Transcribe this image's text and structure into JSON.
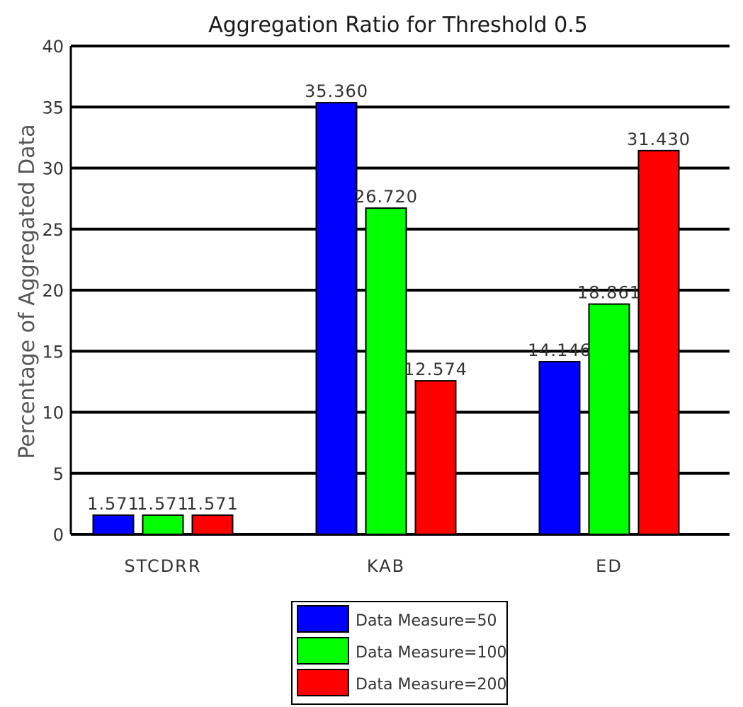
{
  "chart_data": {
    "type": "bar",
    "title": "Aggregation Ratio for Threshold 0.5",
    "xlabel": "",
    "ylabel": "Percentage of Aggregated Data",
    "ylim": [
      0,
      40
    ],
    "yticks": [
      "0",
      "5",
      "10",
      "15",
      "20",
      "25",
      "30",
      "35",
      "40"
    ],
    "grid": "horizontal",
    "legend_position": "bottom",
    "categories": [
      "STCDRR",
      "KAB",
      "ED"
    ],
    "series": [
      {
        "name": "Data Measure=50",
        "color": "#0000ff",
        "values": [
          1.571,
          35.36,
          14.146
        ],
        "labels": [
          "1.571",
          "35.360",
          "14.146"
        ]
      },
      {
        "name": "Data Measure=100",
        "color": "#00ff00",
        "values": [
          1.571,
          26.72,
          18.861
        ],
        "labels": [
          "1.571",
          "26.720",
          "18.861"
        ]
      },
      {
        "name": "Data Measure=200",
        "color": "#ff0000",
        "values": [
          1.571,
          12.574,
          31.43
        ],
        "labels": [
          "1.571",
          "12.574",
          "31.430"
        ]
      }
    ]
  }
}
